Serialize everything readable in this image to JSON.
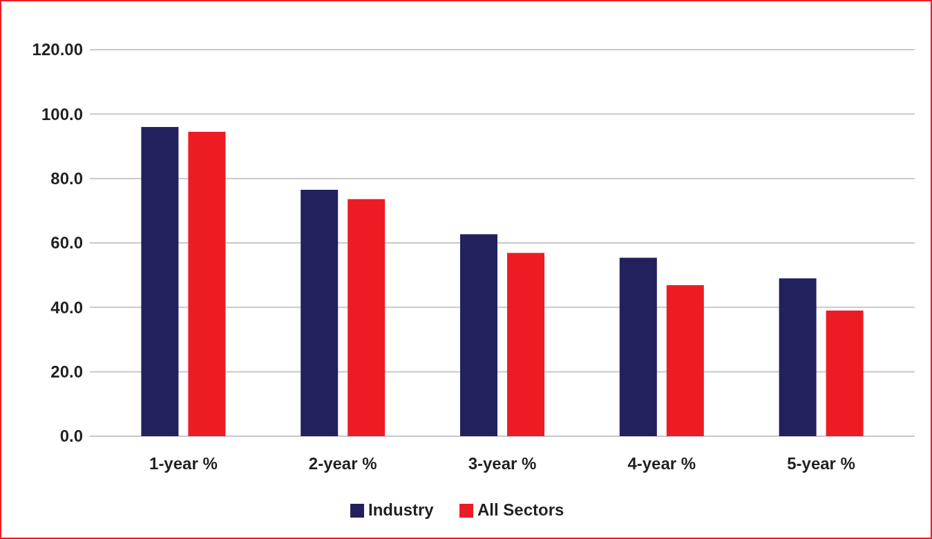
{
  "chart_data": {
    "type": "bar",
    "categories": [
      "1-year %",
      "2-year %",
      "3-year %",
      "4-year %",
      "5-year %"
    ],
    "series": [
      {
        "name": "Industry",
        "color": "#22215e",
        "values": [
          96.0,
          76.5,
          62.7,
          55.4,
          49.0
        ]
      },
      {
        "name": "All Sectors",
        "color": "#ed1c24",
        "values": [
          94.5,
          73.6,
          56.9,
          46.9,
          39.0
        ]
      }
    ],
    "ylim": [
      0,
      120
    ],
    "yticks": [
      {
        "value": 0,
        "label": "0.0"
      },
      {
        "value": 20,
        "label": "20.0"
      },
      {
        "value": 40,
        "label": "40.0"
      },
      {
        "value": 60,
        "label": "60.0"
      },
      {
        "value": 80,
        "label": "80.0"
      },
      {
        "value": 100,
        "label": "100.0"
      },
      {
        "value": 120,
        "label": "120.00"
      }
    ],
    "grid": "y",
    "legend": "bottom"
  }
}
